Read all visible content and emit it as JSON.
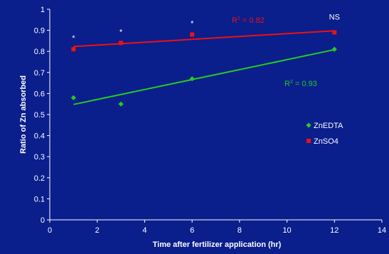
{
  "chart_data": {
    "type": "scatter",
    "xlabel": "Time after fertilizer application (hr)",
    "ylabel": "Ratio of Zn absorbed",
    "xlim": [
      0,
      14
    ],
    "ylim": [
      0,
      1
    ],
    "x_ticks": [
      "0",
      "2",
      "4",
      "6",
      "8",
      "10",
      "12",
      "14"
    ],
    "y_ticks": [
      "0",
      "0.1",
      "0.2",
      "0.3",
      "0.4",
      "0.5",
      "0.6",
      "0.7",
      "0.8",
      "0.9",
      "1"
    ],
    "grid": false,
    "legend_position": "right",
    "series": [
      {
        "name": "ZnEDTA",
        "color": "#22cc22",
        "marker": "diamond",
        "x": [
          1,
          3,
          6,
          12
        ],
        "y": [
          0.58,
          0.55,
          0.67,
          0.81
        ],
        "trendline": {
          "x": [
            1,
            12
          ],
          "y": [
            0.548,
            0.808
          ]
        },
        "r2_base": "R",
        "r2_sup": "2",
        "r2_value": " = 0.93"
      },
      {
        "name": "ZnSO4",
        "color": "#ee1111",
        "marker": "square",
        "x": [
          1,
          3,
          6,
          12
        ],
        "y": [
          0.81,
          0.84,
          0.88,
          0.89
        ],
        "trendline": {
          "x": [
            1,
            12
          ],
          "y": [
            0.823,
            0.898
          ]
        },
        "r2_base": "R",
        "r2_sup": "2",
        "r2_value": " = 0.82"
      }
    ],
    "significance": [
      {
        "x": 1,
        "y": 0.81,
        "label": "*"
      },
      {
        "x": 3,
        "y": 0.84,
        "label": "*"
      },
      {
        "x": 6,
        "y": 0.88,
        "label": "*"
      },
      {
        "x": 12,
        "y": 0.89,
        "label": "NS"
      }
    ]
  }
}
